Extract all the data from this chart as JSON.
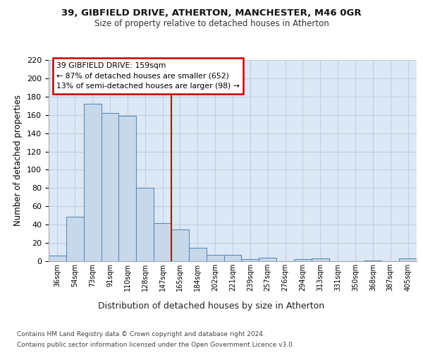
{
  "title_line1": "39, GIBFIELD DRIVE, ATHERTON, MANCHESTER, M46 0GR",
  "title_line2": "Size of property relative to detached houses in Atherton",
  "xlabel": "Distribution of detached houses by size in Atherton",
  "ylabel": "Number of detached properties",
  "footnote_line1": "Contains HM Land Registry data © Crown copyright and database right 2024.",
  "footnote_line2": "Contains public sector information licensed under the Open Government Licence v3.0.",
  "bin_labels": [
    "36sqm",
    "54sqm",
    "73sqm",
    "91sqm",
    "110sqm",
    "128sqm",
    "147sqm",
    "165sqm",
    "184sqm",
    "202sqm",
    "221sqm",
    "239sqm",
    "257sqm",
    "276sqm",
    "294sqm",
    "313sqm",
    "331sqm",
    "350sqm",
    "368sqm",
    "387sqm",
    "405sqm"
  ],
  "bar_values": [
    6,
    49,
    172,
    162,
    159,
    80,
    42,
    35,
    15,
    7,
    7,
    2,
    4,
    0,
    2,
    3,
    0,
    0,
    1,
    0,
    3
  ],
  "bar_color": "#c8d8eb",
  "bar_edge_color": "#5b8db8",
  "grid_color": "#c0cfdf",
  "background_color": "#dce8f5",
  "vline_x_idx": 7,
  "vline_color": "#cc0000",
  "annotation_line1": "39 GIBFIELD DRIVE: 159sqm",
  "annotation_line2": "← 87% of detached houses are smaller (652)",
  "annotation_line3": "13% of semi-detached houses are larger (98) →",
  "annotation_box_facecolor": "#ffffff",
  "annotation_box_edgecolor": "#cc0000",
  "ylim": [
    0,
    220
  ],
  "yticks": [
    0,
    20,
    40,
    60,
    80,
    100,
    120,
    140,
    160,
    180,
    200,
    220
  ]
}
